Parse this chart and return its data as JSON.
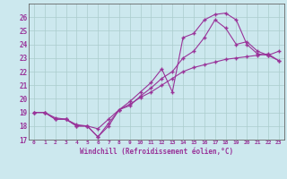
{
  "xlabel": "Windchill (Refroidissement éolien,°C)",
  "xlim": [
    -0.5,
    23.5
  ],
  "ylim": [
    17,
    27
  ],
  "yticks": [
    17,
    18,
    19,
    20,
    21,
    22,
    23,
    24,
    25,
    26
  ],
  "xticks": [
    0,
    1,
    2,
    3,
    4,
    5,
    6,
    7,
    8,
    9,
    10,
    11,
    12,
    13,
    14,
    15,
    16,
    17,
    18,
    19,
    20,
    21,
    22,
    23
  ],
  "bg_color": "#cce8ee",
  "grid_color": "#aacccc",
  "line_color": "#993399",
  "line1_x": [
    0,
    1,
    2,
    3,
    4,
    5,
    6,
    7,
    8,
    9,
    10,
    11,
    12,
    13,
    14,
    15,
    16,
    17,
    18,
    19,
    20,
    21,
    22,
    23
  ],
  "line1_y": [
    19.0,
    19.0,
    18.5,
    18.5,
    18.0,
    18.0,
    17.2,
    18.0,
    19.2,
    19.8,
    20.5,
    21.2,
    22.2,
    20.5,
    24.5,
    24.8,
    25.8,
    26.2,
    26.3,
    25.8,
    24.0,
    23.3,
    23.2,
    23.5
  ],
  "line2_x": [
    0,
    1,
    2,
    3,
    4,
    5,
    6,
    7,
    8,
    9,
    10,
    11,
    12,
    13,
    14,
    15,
    16,
    17,
    18,
    19,
    20,
    21,
    22,
    23
  ],
  "line2_y": [
    19.0,
    19.0,
    18.5,
    18.5,
    18.0,
    18.0,
    17.2,
    18.2,
    19.2,
    19.5,
    20.2,
    20.8,
    21.5,
    22.0,
    23.0,
    23.5,
    24.5,
    25.8,
    25.2,
    24.0,
    24.2,
    23.5,
    23.2,
    22.8
  ],
  "line3_x": [
    0,
    1,
    2,
    3,
    4,
    5,
    6,
    7,
    8,
    9,
    10,
    11,
    12,
    13,
    14,
    15,
    16,
    17,
    18,
    19,
    20,
    21,
    22,
    23
  ],
  "line3_y": [
    19.0,
    19.0,
    18.6,
    18.5,
    18.1,
    18.0,
    17.8,
    18.5,
    19.2,
    19.6,
    20.1,
    20.5,
    21.0,
    21.5,
    22.0,
    22.3,
    22.5,
    22.7,
    22.9,
    23.0,
    23.1,
    23.2,
    23.3,
    22.8
  ]
}
